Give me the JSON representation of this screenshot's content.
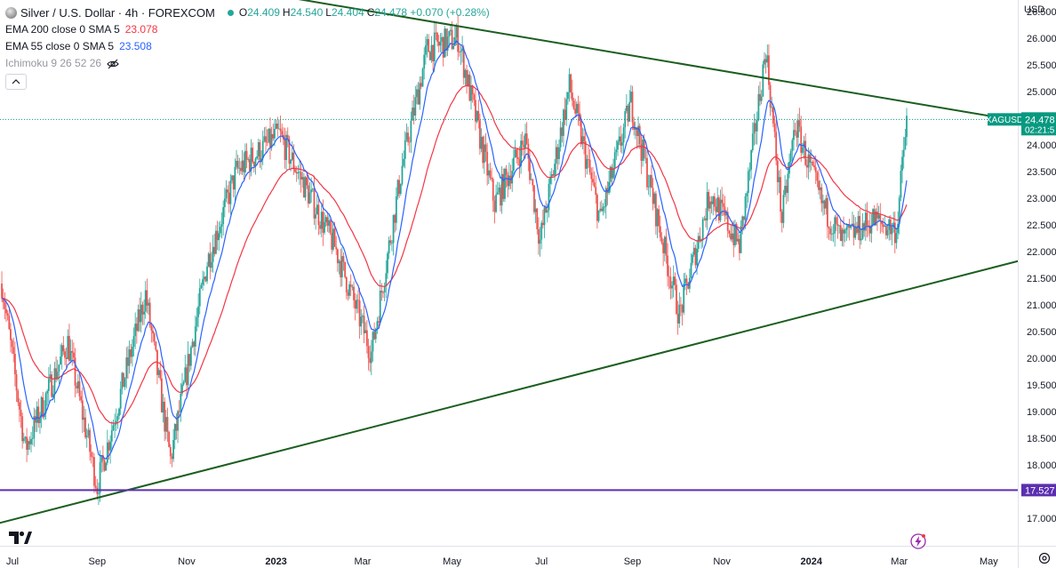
{
  "header": {
    "title": "Silver / U.S. Dollar · 4h · FOREXCOM",
    "ohlc": [
      {
        "k": "O",
        "v": "24.409"
      },
      {
        "k": "H",
        "v": "24.540"
      },
      {
        "k": "L",
        "v": "24.404"
      },
      {
        "k": "C",
        "v": "24.478 +0.070 (+0.28%)"
      }
    ],
    "indicators": [
      {
        "label": "EMA 200 close 0 SMA 5",
        "value": "23.078",
        "color": "#f23645"
      },
      {
        "label": "EMA 55 close 0 SMA 5",
        "value": "23.508",
        "color": "#2962ff"
      }
    ],
    "ichimoku_label": "Ichimoku 9 26 52 26",
    "icons": [
      "symbol-icon",
      "eye-off-icon",
      "chevron-up-icon",
      "tradingview-logo-icon",
      "lightning-icon",
      "settings-icon"
    ]
  },
  "currency": "USD",
  "chart_data": {
    "type": "candlestick",
    "symbol": "XAGUSD",
    "timeframe": "4h",
    "last_price": "24.478",
    "countdown": "02:21:5",
    "level_label": "17.527",
    "colors": {
      "up": "#26a69a",
      "down": "#ef5350",
      "ema200": "#f23645",
      "ema55": "#2962ff",
      "trendline": "#1b5e20",
      "support": "#5b2fb0",
      "price_tag": "#089981",
      "level_tag": "#5b2fb0"
    },
    "y_axis": {
      "min": 16.9,
      "max": 26.9,
      "ticks": [
        "17.000",
        "17.500",
        "18.000",
        "18.500",
        "19.000",
        "19.500",
        "20.000",
        "20.500",
        "21.000",
        "21.500",
        "22.000",
        "22.500",
        "23.000",
        "23.500",
        "24.000",
        "24.500",
        "25.000",
        "25.500",
        "26.000",
        "26.500"
      ]
    },
    "x_axis": {
      "start": "2022-07-01",
      "end": "2024-05-25",
      "ticks": [
        {
          "label": "Jul",
          "date": "2022-07-01",
          "bold": false
        },
        {
          "label": "Sep",
          "date": "2022-09-01",
          "bold": false
        },
        {
          "label": "Nov",
          "date": "2022-11-01",
          "bold": false
        },
        {
          "label": "2023",
          "date": "2023-01-01",
          "bold": true
        },
        {
          "label": "Mar",
          "date": "2023-03-01",
          "bold": false
        },
        {
          "label": "May",
          "date": "2023-05-01",
          "bold": false
        },
        {
          "label": "Jul",
          "date": "2023-07-01",
          "bold": false
        },
        {
          "label": "Sep",
          "date": "2023-09-01",
          "bold": false
        },
        {
          "label": "Nov",
          "date": "2023-11-01",
          "bold": false
        },
        {
          "label": "2024",
          "date": "2024-01-01",
          "bold": true
        },
        {
          "label": "Mar",
          "date": "2024-03-01",
          "bold": false
        },
        {
          "label": "May",
          "date": "2024-05-01",
          "bold": false
        }
      ]
    },
    "price_path": [
      {
        "date": "2022-06-28",
        "price": 21.4
      },
      {
        "date": "2022-07-14",
        "price": 18.3
      },
      {
        "date": "2022-08-12",
        "price": 20.3
      },
      {
        "date": "2022-09-01",
        "price": 17.6
      },
      {
        "date": "2022-10-04",
        "price": 21.2
      },
      {
        "date": "2022-10-21",
        "price": 18.1
      },
      {
        "date": "2022-11-15",
        "price": 21.8
      },
      {
        "date": "2022-12-05",
        "price": 23.5
      },
      {
        "date": "2023-01-03",
        "price": 24.2
      },
      {
        "date": "2023-02-10",
        "price": 22.1
      },
      {
        "date": "2023-03-07",
        "price": 20.1
      },
      {
        "date": "2023-03-28",
        "price": 23.6
      },
      {
        "date": "2023-04-14",
        "price": 25.8
      },
      {
        "date": "2023-05-05",
        "price": 26.0
      },
      {
        "date": "2023-05-30",
        "price": 22.9
      },
      {
        "date": "2023-06-20",
        "price": 24.1
      },
      {
        "date": "2023-06-30",
        "price": 22.2
      },
      {
        "date": "2023-07-20",
        "price": 25.1
      },
      {
        "date": "2023-08-10",
        "price": 22.6
      },
      {
        "date": "2023-08-31",
        "price": 24.8
      },
      {
        "date": "2023-10-03",
        "price": 20.8
      },
      {
        "date": "2023-10-24",
        "price": 23.1
      },
      {
        "date": "2023-11-13",
        "price": 22.1
      },
      {
        "date": "2023-12-01",
        "price": 25.8
      },
      {
        "date": "2023-12-12",
        "price": 22.6
      },
      {
        "date": "2023-12-21",
        "price": 24.4
      },
      {
        "date": "2024-01-08",
        "price": 22.9
      },
      {
        "date": "2024-01-22",
        "price": 22.2
      },
      {
        "date": "2024-02-12",
        "price": 22.6
      },
      {
        "date": "2024-02-28",
        "price": 22.4
      },
      {
        "date": "2024-03-06",
        "price": 24.48
      }
    ],
    "trendlines": [
      {
        "name": "upper",
        "points": [
          {
            "date": "2022-08-15",
            "price": 27.45
          },
          {
            "date": "2024-05-15",
            "price": 24.48
          }
        ]
      },
      {
        "name": "lower",
        "points": [
          {
            "date": "2022-06-25",
            "price": 16.9
          },
          {
            "date": "2024-05-25",
            "price": 21.85
          }
        ]
      }
    ],
    "horizontal_level": 17.527
  }
}
